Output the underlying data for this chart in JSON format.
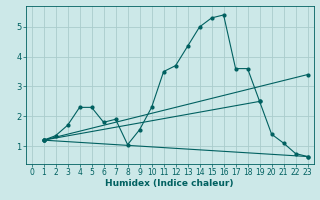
{
  "xlabel": "Humidex (Indice chaleur)",
  "bg_color": "#cce8e8",
  "grid_color": "#aacccc",
  "line_color": "#006060",
  "xlim": [
    -0.5,
    23.5
  ],
  "ylim": [
    0.4,
    5.7
  ],
  "xticks": [
    0,
    1,
    2,
    3,
    4,
    5,
    6,
    7,
    8,
    9,
    10,
    11,
    12,
    13,
    14,
    15,
    16,
    17,
    18,
    19,
    20,
    21,
    22,
    23
  ],
  "yticks": [
    1,
    2,
    3,
    4,
    5
  ],
  "line1_x": [
    1,
    2,
    3,
    4,
    5,
    6,
    7,
    8,
    9,
    10,
    11,
    12,
    13,
    14,
    15,
    16,
    17,
    18,
    19,
    20,
    21,
    22,
    23
  ],
  "line1_y": [
    1.2,
    1.35,
    1.7,
    2.3,
    2.3,
    1.8,
    1.9,
    1.05,
    1.55,
    2.3,
    3.5,
    3.7,
    4.35,
    5.0,
    5.3,
    5.4,
    3.6,
    3.6,
    2.5,
    1.4,
    1.1,
    0.75,
    0.65
  ],
  "line2_x": [
    1,
    23
  ],
  "line2_y": [
    1.2,
    3.4
  ],
  "line3_x": [
    1,
    23
  ],
  "line3_y": [
    1.2,
    0.65
  ],
  "line4_x": [
    1,
    19
  ],
  "line4_y": [
    1.2,
    2.5
  ],
  "tick_fontsize": 5.5,
  "xlabel_fontsize": 6.5,
  "marker_size": 2.0,
  "line_width": 0.8
}
